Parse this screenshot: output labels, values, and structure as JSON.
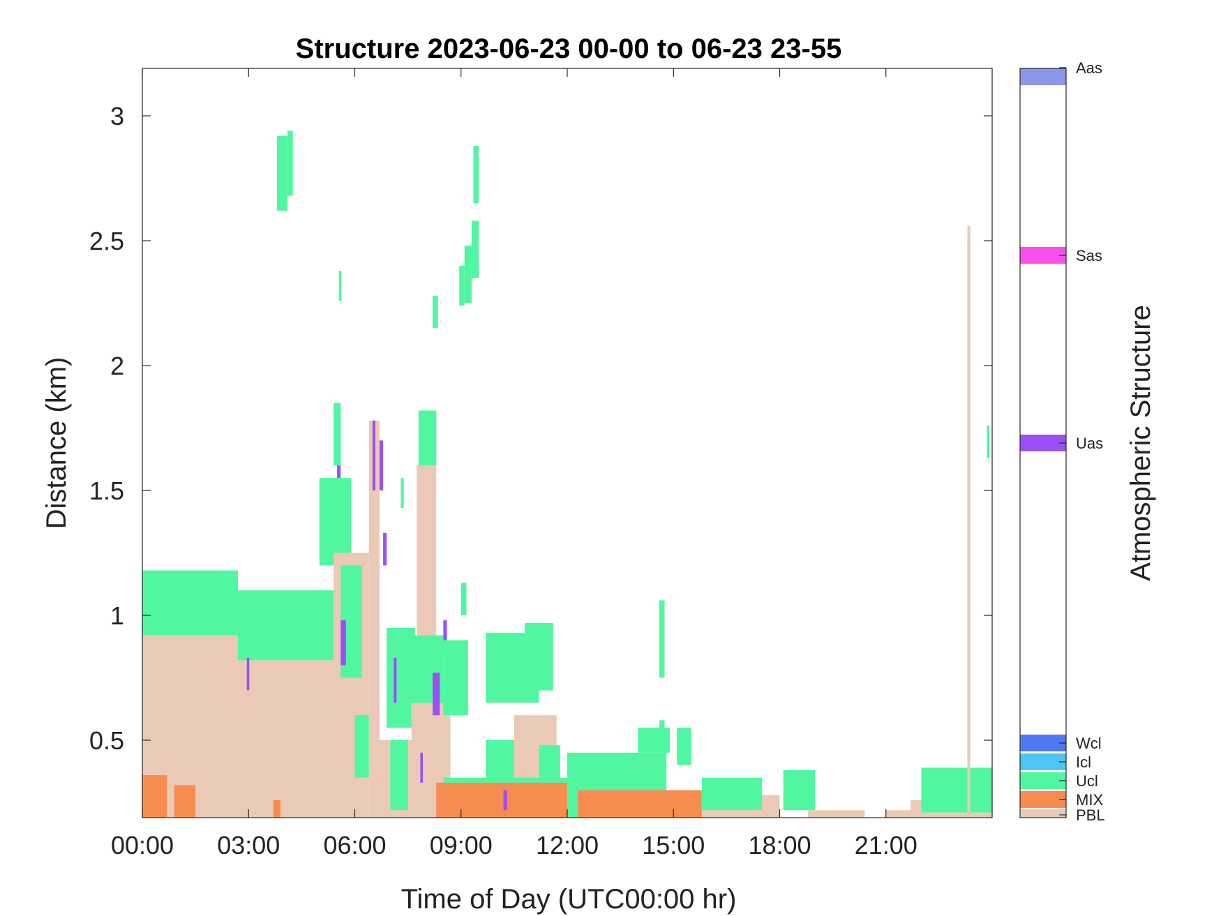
{
  "chart_data": {
    "type": "heatmap",
    "title": "Structure 2023-06-23 00-00 to 06-23 23-55",
    "xlabel": "Time of Day (UTC00:00 hr)",
    "ylabel": "Distance (km)",
    "xlim": [
      0,
      24
    ],
    "ylim": [
      0.19,
      3.19
    ],
    "x_ticks": [
      0,
      3,
      6,
      9,
      12,
      15,
      18,
      21
    ],
    "x_tick_labels": [
      "00:00",
      "03:00",
      "06:00",
      "09:00",
      "12:00",
      "15:00",
      "18:00",
      "21:00"
    ],
    "y_ticks": [
      0.5,
      1,
      1.5,
      2,
      2.5,
      3
    ],
    "y_tick_labels": [
      "0.5",
      "1",
      "1.5",
      "2",
      "2.5",
      "3"
    ],
    "colorbar": {
      "label": "Atmospheric Structure",
      "categories": [
        {
          "label": "PBL",
          "color": "#eacab6"
        },
        {
          "label": "MIX",
          "color": "#f78c50"
        },
        {
          "label": "Ucl",
          "color": "#50f7a0"
        },
        {
          "label": "Icl",
          "color": "#50c4f7"
        },
        {
          "label": "Wcl",
          "color": "#4f78f2"
        },
        {
          "label": "Uas",
          "color": "#9a50f5"
        },
        {
          "label": "Sas",
          "color": "#f750ee"
        },
        {
          "label": "Aas",
          "color": "#8a96e8"
        }
      ]
    },
    "segments": [
      {
        "class": "PBL",
        "start_hr": 0.0,
        "end_hr": 2.7,
        "bottom_km": 0.19,
        "top_km": 0.92
      },
      {
        "class": "Ucl",
        "start_hr": 0.0,
        "end_hr": 2.7,
        "bottom_km": 0.92,
        "top_km": 1.18
      },
      {
        "class": "PBL",
        "start_hr": 2.7,
        "end_hr": 5.4,
        "bottom_km": 0.19,
        "top_km": 0.82
      },
      {
        "class": "Ucl",
        "start_hr": 2.7,
        "end_hr": 5.4,
        "bottom_km": 0.82,
        "top_km": 1.1
      },
      {
        "class": "MIX",
        "start_hr": 0.0,
        "end_hr": 0.7,
        "bottom_km": 0.19,
        "top_km": 0.36
      },
      {
        "class": "MIX",
        "start_hr": 0.9,
        "end_hr": 1.5,
        "bottom_km": 0.19,
        "top_km": 0.32
      },
      {
        "class": "MIX",
        "start_hr": 3.7,
        "end_hr": 3.9,
        "bottom_km": 0.19,
        "top_km": 0.26
      },
      {
        "class": "Uas",
        "start_hr": 2.95,
        "end_hr": 3.02,
        "bottom_km": 0.7,
        "top_km": 0.83
      },
      {
        "class": "Ucl",
        "start_hr": 5.0,
        "end_hr": 5.9,
        "bottom_km": 1.2,
        "top_km": 1.55
      },
      {
        "class": "PBL",
        "start_hr": 5.4,
        "end_hr": 6.4,
        "bottom_km": 0.19,
        "top_km": 1.25
      },
      {
        "class": "Ucl",
        "start_hr": 5.6,
        "end_hr": 6.2,
        "bottom_km": 0.75,
        "top_km": 1.2
      },
      {
        "class": "Uas",
        "start_hr": 5.5,
        "end_hr": 5.6,
        "bottom_km": 1.55,
        "top_km": 1.85
      },
      {
        "class": "Uas",
        "start_hr": 5.6,
        "end_hr": 5.75,
        "bottom_km": 0.8,
        "top_km": 0.98
      },
      {
        "class": "Ucl",
        "start_hr": 5.4,
        "end_hr": 5.6,
        "bottom_km": 1.6,
        "top_km": 1.85
      },
      {
        "class": "Ucl",
        "start_hr": 3.8,
        "end_hr": 4.1,
        "bottom_km": 2.62,
        "top_km": 2.92
      },
      {
        "class": "Ucl",
        "start_hr": 4.1,
        "end_hr": 4.25,
        "bottom_km": 2.68,
        "top_km": 2.94
      },
      {
        "class": "Ucl",
        "start_hr": 5.55,
        "end_hr": 5.62,
        "bottom_km": 2.26,
        "top_km": 2.38
      },
      {
        "class": "Uas",
        "start_hr": 6.0,
        "end_hr": 6.1,
        "bottom_km": 0.37,
        "top_km": 0.56
      },
      {
        "class": "Ucl",
        "start_hr": 6.0,
        "end_hr": 6.4,
        "bottom_km": 0.35,
        "top_km": 0.6
      },
      {
        "class": "PBL",
        "start_hr": 6.4,
        "end_hr": 6.7,
        "bottom_km": 0.19,
        "top_km": 1.78
      },
      {
        "class": "Uas",
        "start_hr": 6.5,
        "end_hr": 6.58,
        "bottom_km": 1.5,
        "top_km": 1.78
      },
      {
        "class": "Uas",
        "start_hr": 6.7,
        "end_hr": 6.8,
        "bottom_km": 1.5,
        "top_km": 1.7
      },
      {
        "class": "Uas",
        "start_hr": 6.8,
        "end_hr": 6.9,
        "bottom_km": 1.2,
        "top_km": 1.33
      },
      {
        "class": "PBL",
        "start_hr": 6.7,
        "end_hr": 7.7,
        "bottom_km": 0.19,
        "top_km": 0.5
      },
      {
        "class": "Ucl",
        "start_hr": 6.9,
        "end_hr": 7.7,
        "bottom_km": 0.55,
        "top_km": 0.95
      },
      {
        "class": "Ucl",
        "start_hr": 7.0,
        "end_hr": 7.5,
        "bottom_km": 0.22,
        "top_km": 0.5
      },
      {
        "class": "Uas",
        "start_hr": 7.1,
        "end_hr": 7.18,
        "bottom_km": 0.65,
        "top_km": 0.83
      },
      {
        "class": "Ucl",
        "start_hr": 7.3,
        "end_hr": 7.38,
        "bottom_km": 1.43,
        "top_km": 1.55
      },
      {
        "class": "PBL",
        "start_hr": 7.6,
        "end_hr": 8.7,
        "bottom_km": 0.19,
        "top_km": 0.65
      },
      {
        "class": "PBL",
        "start_hr": 7.75,
        "end_hr": 8.3,
        "bottom_km": 0.65,
        "top_km": 1.6
      },
      {
        "class": "Ucl",
        "start_hr": 7.6,
        "end_hr": 8.5,
        "bottom_km": 0.65,
        "top_km": 0.92
      },
      {
        "class": "Ucl",
        "start_hr": 7.8,
        "end_hr": 8.3,
        "bottom_km": 1.6,
        "top_km": 1.82
      },
      {
        "class": "Uas",
        "start_hr": 8.2,
        "end_hr": 8.4,
        "bottom_km": 0.6,
        "top_km": 0.77
      },
      {
        "class": "Uas",
        "start_hr": 8.5,
        "end_hr": 8.6,
        "bottom_km": 0.85,
        "top_km": 0.98
      },
      {
        "class": "Uas",
        "start_hr": 7.85,
        "end_hr": 7.92,
        "bottom_km": 0.33,
        "top_km": 0.45
      },
      {
        "class": "Ucl",
        "start_hr": 8.2,
        "end_hr": 8.35,
        "bottom_km": 2.15,
        "top_km": 2.28
      },
      {
        "class": "Ucl",
        "start_hr": 8.95,
        "end_hr": 9.1,
        "bottom_km": 2.24,
        "top_km": 2.4
      },
      {
        "class": "Ucl",
        "start_hr": 9.1,
        "end_hr": 9.3,
        "bottom_km": 2.25,
        "top_km": 2.48
      },
      {
        "class": "Ucl",
        "start_hr": 9.3,
        "end_hr": 9.5,
        "bottom_km": 2.35,
        "top_km": 2.58
      },
      {
        "class": "Ucl",
        "start_hr": 9.35,
        "end_hr": 9.5,
        "bottom_km": 2.65,
        "top_km": 2.88
      },
      {
        "class": "Ucl",
        "start_hr": 8.5,
        "end_hr": 9.2,
        "bottom_km": 0.6,
        "top_km": 0.9
      },
      {
        "class": "Ucl",
        "start_hr": 9.0,
        "end_hr": 9.15,
        "bottom_km": 1.0,
        "top_km": 1.13
      },
      {
        "class": "Ucl",
        "start_hr": 9.7,
        "end_hr": 11.2,
        "bottom_km": 0.65,
        "top_km": 0.93
      },
      {
        "class": "Ucl",
        "start_hr": 10.8,
        "end_hr": 11.6,
        "bottom_km": 0.7,
        "top_km": 0.97
      },
      {
        "class": "PBL",
        "start_hr": 10.5,
        "end_hr": 11.7,
        "bottom_km": 0.19,
        "top_km": 0.6
      },
      {
        "class": "PBL",
        "start_hr": 10.2,
        "end_hr": 10.5,
        "bottom_km": 0.19,
        "top_km": 0.42
      },
      {
        "class": "Ucl",
        "start_hr": 8.5,
        "end_hr": 12.0,
        "bottom_km": 0.19,
        "top_km": 0.35
      },
      {
        "class": "Ucl",
        "start_hr": 9.7,
        "end_hr": 10.5,
        "bottom_km": 0.34,
        "top_km": 0.5
      },
      {
        "class": "Ucl",
        "start_hr": 11.2,
        "end_hr": 11.8,
        "bottom_km": 0.28,
        "top_km": 0.48
      },
      {
        "class": "MIX",
        "start_hr": 8.3,
        "end_hr": 12.0,
        "bottom_km": 0.19,
        "top_km": 0.33
      },
      {
        "class": "Uas",
        "start_hr": 10.2,
        "end_hr": 10.3,
        "bottom_km": 0.22,
        "top_km": 0.3
      },
      {
        "class": "Ucl",
        "start_hr": 12.0,
        "end_hr": 14.8,
        "bottom_km": 0.19,
        "top_km": 0.45
      },
      {
        "class": "Ucl",
        "start_hr": 14.0,
        "end_hr": 14.9,
        "bottom_km": 0.45,
        "top_km": 0.55
      },
      {
        "class": "Ucl",
        "start_hr": 14.6,
        "end_hr": 14.75,
        "bottom_km": 0.5,
        "top_km": 0.58
      },
      {
        "class": "Ucl",
        "start_hr": 14.6,
        "end_hr": 14.75,
        "bottom_km": 0.75,
        "top_km": 1.06
      },
      {
        "class": "Ucl",
        "start_hr": 15.1,
        "end_hr": 15.5,
        "bottom_km": 0.4,
        "top_km": 0.55
      },
      {
        "class": "MIX",
        "start_hr": 12.3,
        "end_hr": 15.8,
        "bottom_km": 0.19,
        "top_km": 0.3
      },
      {
        "class": "MIX",
        "start_hr": 15.8,
        "end_hr": 18.0,
        "bottom_km": 0.19,
        "top_km": 0.26
      },
      {
        "class": "PBL",
        "start_hr": 15.8,
        "end_hr": 18.0,
        "bottom_km": 0.19,
        "top_km": 0.28
      },
      {
        "class": "Ucl",
        "start_hr": 15.8,
        "end_hr": 17.5,
        "bottom_km": 0.22,
        "top_km": 0.35
      },
      {
        "class": "Ucl",
        "start_hr": 18.1,
        "end_hr": 19.0,
        "bottom_km": 0.22,
        "top_km": 0.38
      },
      {
        "class": "PBL",
        "start_hr": 18.8,
        "end_hr": 20.4,
        "bottom_km": 0.19,
        "top_km": 0.22
      },
      {
        "class": "PBL",
        "start_hr": 21.0,
        "end_hr": 21.8,
        "bottom_km": 0.19,
        "top_km": 0.22
      },
      {
        "class": "PBL",
        "start_hr": 21.7,
        "end_hr": 22.0,
        "bottom_km": 0.19,
        "top_km": 0.26
      },
      {
        "class": "Ucl",
        "start_hr": 22.0,
        "end_hr": 24.0,
        "bottom_km": 0.21,
        "top_km": 0.39
      },
      {
        "class": "PBL",
        "start_hr": 22.0,
        "end_hr": 24.0,
        "bottom_km": 0.19,
        "top_km": 0.21
      },
      {
        "class": "PBL",
        "start_hr": 23.3,
        "end_hr": 23.38,
        "bottom_km": 0.19,
        "top_km": 2.56
      },
      {
        "class": "Ucl",
        "start_hr": 23.85,
        "end_hr": 23.92,
        "bottom_km": 1.63,
        "top_km": 1.76
      }
    ]
  }
}
